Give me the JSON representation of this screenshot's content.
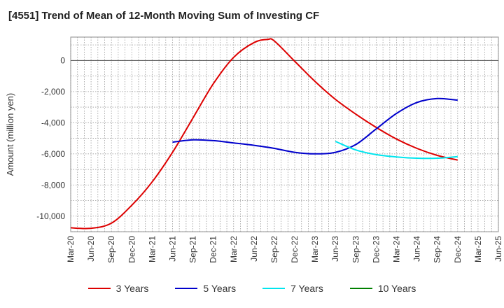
{
  "chart_data": {
    "type": "line",
    "title": "[4551]  Trend of Mean of 12-Month Moving Sum of Investing CF",
    "ylabel": "Amount (million yen)",
    "xlabel": "",
    "ylim": [
      -11000,
      1500
    ],
    "y_ticks": [
      0,
      -2000,
      -4000,
      -6000,
      -8000,
      -10000
    ],
    "y_tick_labels": [
      "0",
      "-2,000",
      "-4,000",
      "-6,000",
      "-8,000",
      "-10,000"
    ],
    "x_ticks": [
      "Mar-20",
      "Jun-20",
      "Sep-20",
      "Dec-20",
      "Mar-21",
      "Jun-21",
      "Sep-21",
      "Dec-21",
      "Mar-22",
      "Jun-22",
      "Sep-22",
      "Dec-22",
      "Mar-23",
      "Jun-23",
      "Sep-23",
      "Dec-23",
      "Mar-24",
      "Jun-24",
      "Sep-24",
      "Dec-24",
      "Mar-25",
      "Jun-25"
    ],
    "grid": true,
    "legend_position": "bottom",
    "series": [
      {
        "name": "3 Years",
        "color": "#dd0000",
        "x": [
          "2020-03",
          "2020-06",
          "2020-09",
          "2020-12",
          "2021-03",
          "2021-06",
          "2021-09",
          "2021-12",
          "2022-03",
          "2022-06",
          "2022-08",
          "2022-09",
          "2022-12",
          "2023-03",
          "2023-06",
          "2023-09",
          "2023-12",
          "2024-03",
          "2024-06",
          "2024-09",
          "2024-12"
        ],
        "values": [
          -10750,
          -10780,
          -10450,
          -9300,
          -7800,
          -5900,
          -3700,
          -1500,
          200,
          1150,
          1350,
          1250,
          -50,
          -1350,
          -2500,
          -3450,
          -4300,
          -5050,
          -5650,
          -6100,
          -6400
        ]
      },
      {
        "name": "5 Years",
        "color": "#0000cc",
        "x": [
          "2021-06",
          "2021-09",
          "2021-12",
          "2022-03",
          "2022-06",
          "2022-09",
          "2022-12",
          "2023-03",
          "2023-06",
          "2023-09",
          "2023-12",
          "2024-03",
          "2024-06",
          "2024-09",
          "2024-12"
        ],
        "values": [
          -5250,
          -5100,
          -5150,
          -5300,
          -5450,
          -5650,
          -5900,
          -6000,
          -5900,
          -5400,
          -4400,
          -3400,
          -2700,
          -2450,
          -2550
        ]
      },
      {
        "name": "7 Years",
        "color": "#00e5ee",
        "x": [
          "2023-06",
          "2023-09",
          "2023-12",
          "2024-03",
          "2024-06",
          "2024-09",
          "2024-12"
        ],
        "values": [
          -5200,
          -5750,
          -6050,
          -6200,
          -6280,
          -6280,
          -6180
        ]
      },
      {
        "name": "10 Years",
        "color": "#008000",
        "x": [],
        "values": []
      }
    ]
  }
}
